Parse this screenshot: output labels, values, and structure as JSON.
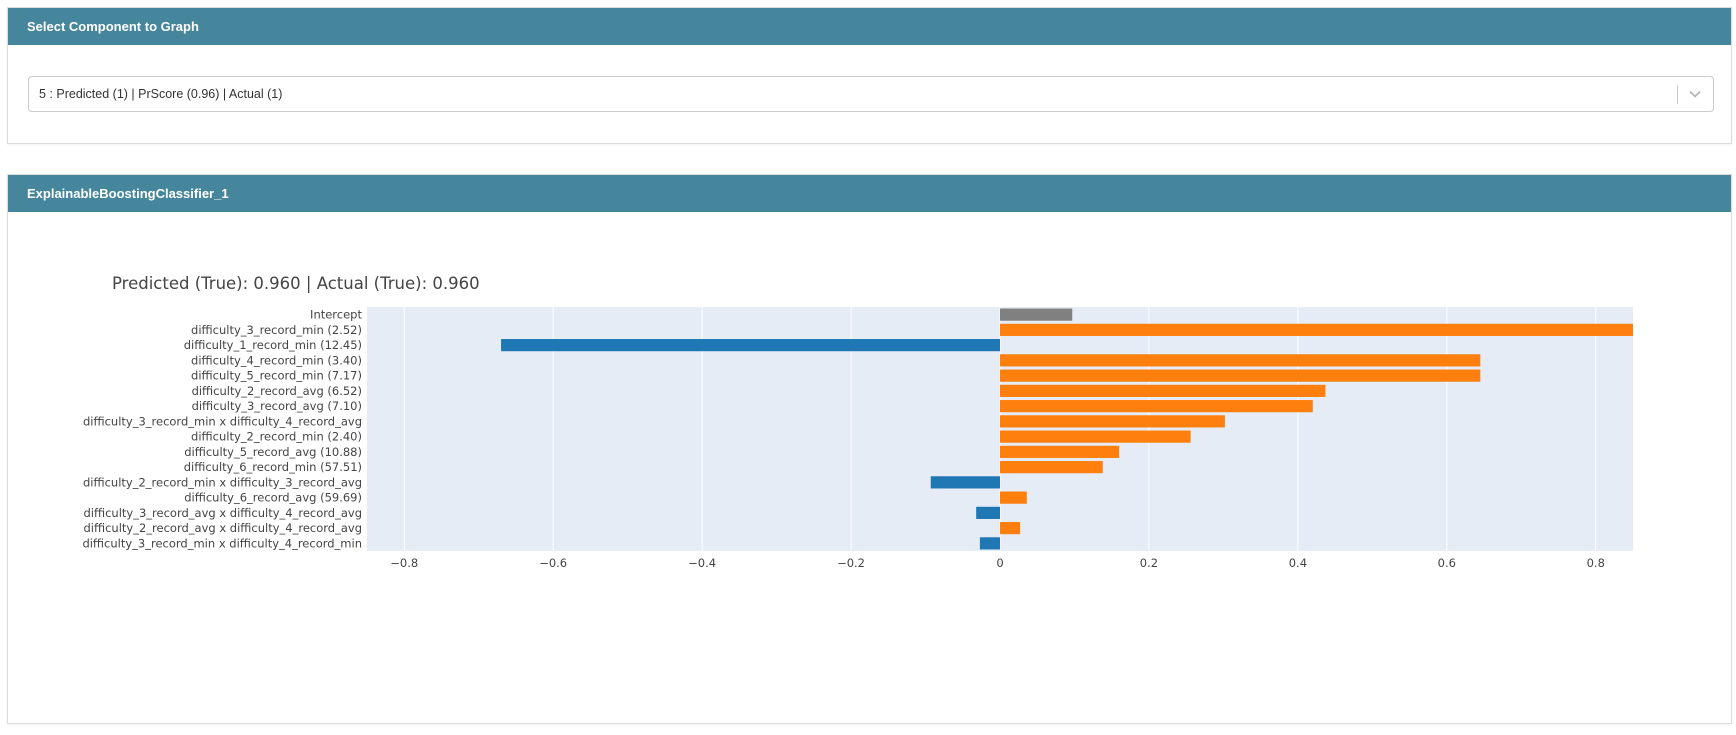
{
  "select_panel": {
    "title": "Select Component to Graph",
    "dropdown_value": "5 : Predicted (1) | PrScore (0.96) | Actual (1)"
  },
  "graph_panel": {
    "title": "ExplainableBoostingClassifier_1"
  },
  "colors": {
    "header": "#46869c",
    "positive": "#ff7f0e",
    "negative": "#1f77b4",
    "intercept": "#808080",
    "plot_bg": "#e5ecf6",
    "grid": "#ffffff"
  },
  "chart_data": {
    "type": "bar",
    "orientation": "horizontal",
    "title": "Predicted (True): 0.960 | Actual (True): 0.960",
    "xlim": [
      -0.85,
      0.85
    ],
    "grid": true,
    "x_ticks": [
      {
        "value": -0.8,
        "label": "−0.8"
      },
      {
        "value": -0.6,
        "label": "−0.6"
      },
      {
        "value": -0.4,
        "label": "−0.4"
      },
      {
        "value": -0.2,
        "label": "−0.2"
      },
      {
        "value": 0,
        "label": "0"
      },
      {
        "value": 0.2,
        "label": "0.2"
      },
      {
        "value": 0.4,
        "label": "0.4"
      },
      {
        "value": 0.6,
        "label": "0.6"
      },
      {
        "value": 0.8,
        "label": "0.8"
      }
    ],
    "categories": [
      "Intercept",
      "difficulty_3_record_min (2.52)",
      "difficulty_1_record_min (12.45)",
      "difficulty_4_record_min (3.40)",
      "difficulty_5_record_min (7.17)",
      "difficulty_2_record_avg (6.52)",
      "difficulty_3_record_avg (7.10)",
      "difficulty_3_record_min x difficulty_4_record_avg",
      "difficulty_2_record_min (2.40)",
      "difficulty_5_record_avg (10.88)",
      "difficulty_6_record_min (57.51)",
      "difficulty_2_record_min x difficulty_3_record_avg",
      "difficulty_6_record_avg (59.69)",
      "difficulty_3_record_avg x difficulty_4_record_avg",
      "difficulty_2_record_avg x difficulty_4_record_avg",
      "difficulty_3_record_min x difficulty_4_record_min"
    ],
    "values": [
      0.097,
      0.86,
      -0.67,
      0.645,
      0.645,
      0.437,
      0.42,
      0.302,
      0.256,
      0.16,
      0.138,
      -0.093,
      0.036,
      -0.032,
      0.027,
      -0.027
    ]
  }
}
